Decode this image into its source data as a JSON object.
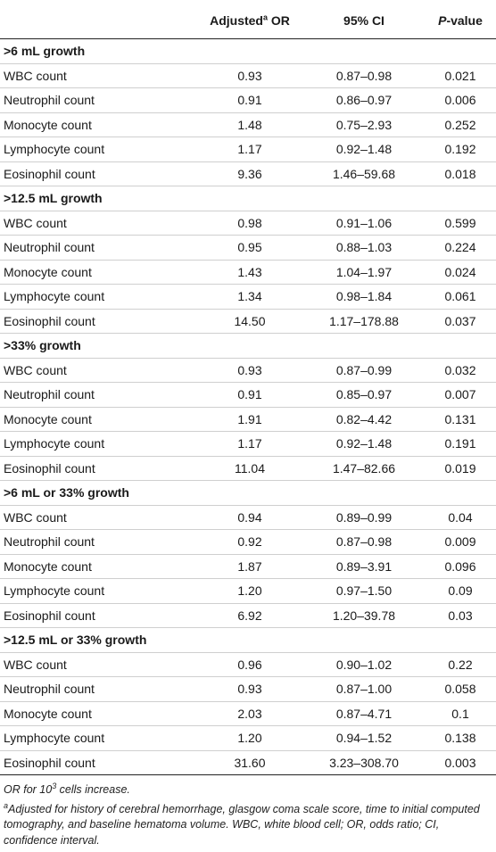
{
  "table": {
    "headers": {
      "col0": "",
      "col1_main": "Adjusted",
      "col1_sup": "a",
      "col1_tail": " OR",
      "col2": "95% CI",
      "col3_italic": "P",
      "col3_tail": "-value"
    },
    "sections": [
      {
        "title": ">6 mL growth",
        "rows": [
          {
            "label": "WBC count",
            "or": "0.93",
            "ci": "0.87–0.98",
            "p": "0.021"
          },
          {
            "label": "Neutrophil count",
            "or": "0.91",
            "ci": "0.86–0.97",
            "p": "0.006"
          },
          {
            "label": "Monocyte count",
            "or": "1.48",
            "ci": "0.75–2.93",
            "p": "0.252"
          },
          {
            "label": "Lymphocyte count",
            "or": "1.17",
            "ci": "0.92–1.48",
            "p": "0.192"
          },
          {
            "label": "Eosinophil count",
            "or": "9.36",
            "ci": "1.46–59.68",
            "p": "0.018"
          }
        ]
      },
      {
        "title": ">12.5 mL growth",
        "rows": [
          {
            "label": "WBC count",
            "or": "0.98",
            "ci": "0.91–1.06",
            "p": "0.599"
          },
          {
            "label": "Neutrophil count",
            "or": "0.95",
            "ci": "0.88–1.03",
            "p": "0.224"
          },
          {
            "label": "Monocyte count",
            "or": "1.43",
            "ci": "1.04–1.97",
            "p": "0.024"
          },
          {
            "label": "Lymphocyte count",
            "or": "1.34",
            "ci": "0.98–1.84",
            "p": "0.061"
          },
          {
            "label": "Eosinophil count",
            "or": "14.50",
            "ci": "1.17–178.88",
            "p": "0.037"
          }
        ]
      },
      {
        "title": ">33% growth",
        "rows": [
          {
            "label": "WBC count",
            "or": "0.93",
            "ci": "0.87–0.99",
            "p": "0.032"
          },
          {
            "label": "Neutrophil count",
            "or": "0.91",
            "ci": "0.85–0.97",
            "p": "0.007"
          },
          {
            "label": "Monocyte count",
            "or": "1.91",
            "ci": "0.82–4.42",
            "p": "0.131"
          },
          {
            "label": "Lymphocyte count",
            "or": "1.17",
            "ci": "0.92–1.48",
            "p": "0.191"
          },
          {
            "label": "Eosinophil count",
            "or": "11.04",
            "ci": "1.47–82.66",
            "p": "0.019"
          }
        ]
      },
      {
        "title": ">6 mL or 33% growth",
        "rows": [
          {
            "label": "WBC count",
            "or": "0.94",
            "ci": "0.89–0.99",
            "p": "0.04"
          },
          {
            "label": "Neutrophil count",
            "or": "0.92",
            "ci": "0.87–0.98",
            "p": "0.009"
          },
          {
            "label": "Monocyte count",
            "or": "1.87",
            "ci": "0.89–3.91",
            "p": "0.096"
          },
          {
            "label": "Lymphocyte count",
            "or": "1.20",
            "ci": "0.97–1.50",
            "p": "0.09"
          },
          {
            "label": "Eosinophil count",
            "or": "6.92",
            "ci": "1.20–39.78",
            "p": "0.03"
          }
        ]
      },
      {
        "title": ">12.5 mL or 33% growth",
        "rows": [
          {
            "label": "WBC count",
            "or": "0.96",
            "ci": "0.90–1.02",
            "p": "0.22"
          },
          {
            "label": "Neutrophil count",
            "or": "0.93",
            "ci": "0.87–1.00",
            "p": "0.058"
          },
          {
            "label": "Monocyte count",
            "or": "2.03",
            "ci": "0.87–4.71",
            "p": "0.1"
          },
          {
            "label": "Lymphocyte count",
            "or": "1.20",
            "ci": "0.94–1.52",
            "p": "0.138"
          },
          {
            "label": "Eosinophil count",
            "or": "31.60",
            "ci": "3.23–308.70",
            "p": "0.003"
          }
        ]
      }
    ]
  },
  "footnotes": {
    "note1_pre": "OR for 10",
    "note1_sup": "3",
    "note1_post": " cells increase.",
    "note2_sup": "a",
    "note2_text": "Adjusted for history of cerebral hemorrhage, glasgow coma scale score, time to initial computed tomography, and baseline hematoma volume. WBC, white blood cell; OR, odds ratio; CI, confidence interval."
  }
}
